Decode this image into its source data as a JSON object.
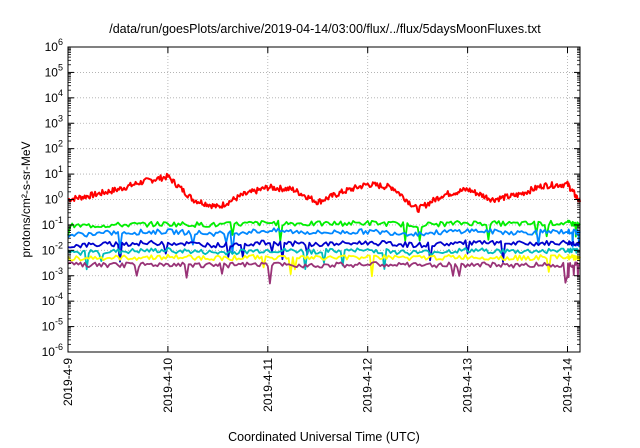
{
  "chart_data": {
    "type": "line",
    "title": "/data/run/goesPlots/archive/2019-04-14/03:00/flux/../flux/5daysMoonFluxes.txt",
    "xlabel": "Coordinated Universal Time (UTC)",
    "ylabel": "protons/cm²-s-sr-MeV",
    "y_scale": "log",
    "ylim": [
      1e-06,
      1000000.0
    ],
    "xlim": [
      "2019-04-09 00:00",
      "2019-04-14 03:00"
    ],
    "grid": true,
    "x_ticks": [
      "2019-4-9",
      "2019-4-10",
      "2019-4-11",
      "2019-4-12",
      "2019-4-13",
      "2019-4-14"
    ],
    "y_ticks": [
      {
        "base": "10",
        "exp": "-6"
      },
      {
        "base": "10",
        "exp": "-5"
      },
      {
        "base": "10",
        "exp": "-4"
      },
      {
        "base": "10",
        "exp": "-3"
      },
      {
        "base": "10",
        "exp": "-2"
      },
      {
        "base": "10",
        "exp": "-1"
      },
      {
        "base": "10",
        "exp": "0"
      },
      {
        "base": "10",
        "exp": "1"
      },
      {
        "base": "10",
        "exp": "2"
      },
      {
        "base": "10",
        "exp": "3"
      },
      {
        "base": "10",
        "exp": "4"
      },
      {
        "base": "10",
        "exp": "5"
      },
      {
        "base": "10",
        "exp": "6"
      }
    ],
    "series": [
      {
        "color": "#ff0000",
        "x": [
          "2019-04-09 00:00",
          "2019-04-09 06:00",
          "2019-04-09 12:00",
          "2019-04-09 18:00",
          "2019-04-10 00:00",
          "2019-04-10 06:00",
          "2019-04-10 12:00",
          "2019-04-10 18:00",
          "2019-04-11 00:00",
          "2019-04-11 06:00",
          "2019-04-11 12:00",
          "2019-04-11 18:00",
          "2019-04-12 00:00",
          "2019-04-12 06:00",
          "2019-04-12 12:00",
          "2019-04-12 18:00",
          "2019-04-13 00:00",
          "2019-04-13 06:00",
          "2019-04-13 12:00",
          "2019-04-13 18:00",
          "2019-04-14 00:00",
          "2019-04-14 03:00"
        ],
        "y": [
          1.0,
          1.5,
          2.5,
          5.0,
          8.0,
          1.0,
          0.5,
          1.5,
          3.0,
          2.5,
          0.8,
          2.0,
          4.0,
          3.0,
          0.4,
          1.5,
          2.5,
          1.0,
          1.5,
          3.5,
          4.0,
          0.8
        ]
      },
      {
        "color": "#00ee00",
        "x": [
          "2019-04-09 00:00",
          "2019-04-09 12:00",
          "2019-04-10 00:00",
          "2019-04-10 12:00",
          "2019-04-11 00:00",
          "2019-04-11 12:00",
          "2019-04-12 00:00",
          "2019-04-12 12:00",
          "2019-04-13 00:00",
          "2019-04-13 12:00",
          "2019-04-14 00:00",
          "2019-04-14 03:00"
        ],
        "y": [
          0.09,
          0.1,
          0.11,
          0.1,
          0.12,
          0.11,
          0.12,
          0.1,
          0.12,
          0.11,
          0.12,
          0.1
        ]
      },
      {
        "color": "#0088ff",
        "x": [
          "2019-04-09 00:00",
          "2019-04-09 12:00",
          "2019-04-10 00:00",
          "2019-04-10 12:00",
          "2019-04-11 00:00",
          "2019-04-11 12:00",
          "2019-04-12 00:00",
          "2019-04-12 12:00",
          "2019-04-13 00:00",
          "2019-04-13 12:00",
          "2019-04-14 00:00",
          "2019-04-14 03:00"
        ],
        "y": [
          0.04,
          0.05,
          0.055,
          0.045,
          0.06,
          0.05,
          0.055,
          0.045,
          0.06,
          0.05,
          0.055,
          0.05
        ]
      },
      {
        "color": "#0000cc",
        "x": [
          "2019-04-09 00:00",
          "2019-04-09 12:00",
          "2019-04-10 00:00",
          "2019-04-10 12:00",
          "2019-04-11 00:00",
          "2019-04-11 12:00",
          "2019-04-12 00:00",
          "2019-04-12 12:00",
          "2019-04-13 00:00",
          "2019-04-13 12:00",
          "2019-04-14 00:00",
          "2019-04-14 03:00"
        ],
        "y": [
          0.015,
          0.018,
          0.02,
          0.016,
          0.02,
          0.017,
          0.02,
          0.016,
          0.02,
          0.018,
          0.02,
          0.018
        ]
      },
      {
        "color": "#00bbbb",
        "x": [
          "2019-04-09 00:00",
          "2019-04-09 12:00",
          "2019-04-10 00:00",
          "2019-04-10 12:00",
          "2019-04-11 00:00",
          "2019-04-11 12:00",
          "2019-04-12 00:00",
          "2019-04-12 12:00",
          "2019-04-13 00:00",
          "2019-04-13 12:00",
          "2019-04-14 00:00",
          "2019-04-14 03:00"
        ],
        "y": [
          0.008,
          0.009,
          0.01,
          0.008,
          0.01,
          0.009,
          0.01,
          0.008,
          0.01,
          0.009,
          0.01,
          0.009
        ]
      },
      {
        "color": "#ffff00",
        "x": [
          "2019-04-09 00:00",
          "2019-04-09 12:00",
          "2019-04-10 00:00",
          "2019-04-10 12:00",
          "2019-04-11 00:00",
          "2019-04-11 12:00",
          "2019-04-12 00:00",
          "2019-04-12 12:00",
          "2019-04-13 00:00",
          "2019-04-13 12:00",
          "2019-04-14 00:00",
          "2019-04-14 03:00"
        ],
        "y": [
          0.005,
          0.005,
          0.0055,
          0.005,
          0.0055,
          0.005,
          0.0055,
          0.005,
          0.0055,
          0.005,
          0.0055,
          0.005
        ]
      },
      {
        "color": "#993377",
        "x": [
          "2019-04-09 00:00",
          "2019-04-09 12:00",
          "2019-04-10 00:00",
          "2019-04-10 12:00",
          "2019-04-11 00:00",
          "2019-04-11 12:00",
          "2019-04-12 00:00",
          "2019-04-12 12:00",
          "2019-04-13 00:00",
          "2019-04-13 12:00",
          "2019-04-14 00:00",
          "2019-04-14 03:00"
        ],
        "y": [
          0.0027,
          0.0026,
          0.0028,
          0.0026,
          0.0027,
          0.0026,
          0.0028,
          0.0026,
          0.0027,
          0.0026,
          0.0028,
          0.0027
        ]
      }
    ]
  }
}
